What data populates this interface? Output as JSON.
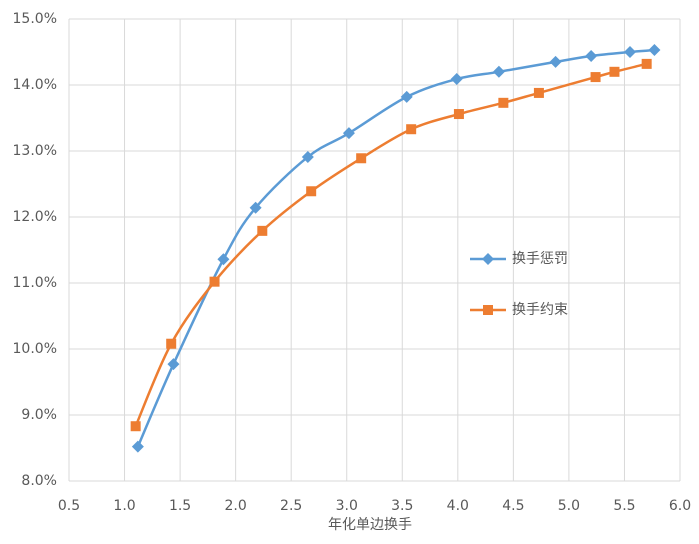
{
  "chart_data": {
    "type": "line",
    "x_label": "年化单边换手",
    "xlim": [
      0.5,
      6.0
    ],
    "xticks": [
      {
        "value": 0.5,
        "label": "0.5"
      },
      {
        "value": 1,
        "label": "1.0"
      },
      {
        "value": 1.5,
        "label": "1.5"
      },
      {
        "value": 2,
        "label": "2.0"
      },
      {
        "value": 2.5,
        "label": "2.5"
      },
      {
        "value": 3,
        "label": "3.0"
      },
      {
        "value": 3.5,
        "label": "3.5"
      },
      {
        "value": 4,
        "label": "4.0"
      },
      {
        "value": 4.5,
        "label": "4.5"
      },
      {
        "value": 5,
        "label": "5.0"
      },
      {
        "value": 5.5,
        "label": "5.5"
      },
      {
        "value": 6,
        "label": "6.0"
      }
    ],
    "ylim": [
      8,
      15
    ],
    "yticks": [
      {
        "value": 8,
        "label": "8.0%"
      },
      {
        "value": 9,
        "label": "9.0%"
      },
      {
        "value": 10,
        "label": "10.0%"
      },
      {
        "value": 11,
        "label": "11.0%"
      },
      {
        "value": 12,
        "label": "12.0%"
      },
      {
        "value": 13,
        "label": "13.0%"
      },
      {
        "value": 14,
        "label": "14.0%"
      },
      {
        "value": 15,
        "label": "15.0%"
      }
    ],
    "grid": true,
    "legend": "right",
    "series": [
      {
        "name": "换手惩罚",
        "color": "#5b9bd5",
        "marker": "diamond",
        "x": [
          1.12,
          1.44,
          1.89,
          2.18,
          2.65,
          3.02,
          3.54,
          3.99,
          4.37,
          4.88,
          5.2,
          5.55,
          5.77
        ],
        "values": [
          8.52,
          9.77,
          11.36,
          12.14,
          12.91,
          13.27,
          13.82,
          14.09,
          14.2,
          14.35,
          14.44,
          14.5,
          14.53
        ]
      },
      {
        "name": "换手约束",
        "color": "#ed7d31",
        "marker": "square",
        "x": [
          1.1,
          1.42,
          1.81,
          2.24,
          2.68,
          3.13,
          3.58,
          4.01,
          4.41,
          4.73,
          5.24,
          5.41,
          5.7
        ],
        "values": [
          8.83,
          10.08,
          11.02,
          11.79,
          12.39,
          12.89,
          13.33,
          13.56,
          13.73,
          13.88,
          14.12,
          14.2,
          14.32
        ]
      }
    ]
  }
}
